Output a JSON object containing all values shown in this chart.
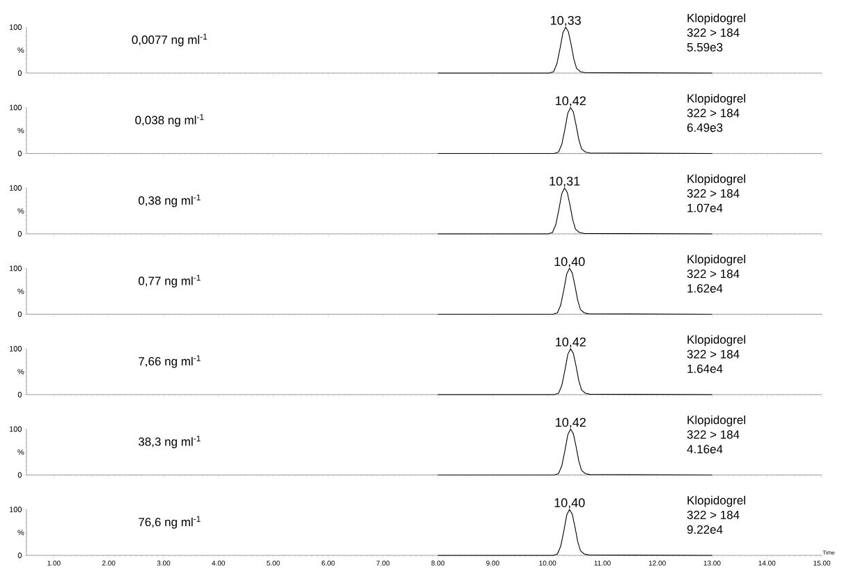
{
  "chart_data": [
    {
      "type": "line",
      "title": "0,0077 ng ml$^{-1}$",
      "ylabel": "%",
      "xlim": [
        0.5,
        15
      ],
      "ylim": [
        0,
        100
      ],
      "tick_labels": "y",
      "xticks": [
        {
          "value": 1,
          "label": null
        },
        {
          "value": 2,
          "label": null
        },
        {
          "value": 3,
          "label": null
        },
        {
          "value": 4,
          "label": null
        },
        {
          "value": 5,
          "label": null
        },
        {
          "value": 6,
          "label": null
        },
        {
          "value": 7,
          "label": null
        },
        {
          "value": 8,
          "label": null
        },
        {
          "value": 9,
          "label": null
        },
        {
          "value": 10,
          "label": null
        },
        {
          "value": 11,
          "label": null
        },
        {
          "value": 12,
          "label": null
        },
        {
          "value": 13,
          "label": null
        },
        {
          "value": 14,
          "label": null
        },
        {
          "value": 15,
          "label": null
        }
      ],
      "yticks": [
        0,
        100
      ],
      "annotations": [
        {
          "text": "10,33",
          "x": 10.33,
          "y": 100
        },
        "Klopidogrel",
        "322 > 184",
        "5.59e3"
      ],
      "series": [
        {
          "color": "#000000",
          "x": [
            8.0,
            10.03,
            10.11,
            10.17,
            10.23,
            10.28,
            10.33,
            10.38,
            10.43,
            10.48,
            10.53,
            10.6,
            10.68,
            13.0
          ],
          "values": [
            0,
            0,
            3,
            20,
            55,
            88,
            100,
            90,
            62,
            30,
            10,
            3,
            1,
            0
          ]
        }
      ]
    },
    {
      "type": "line",
      "title": "0,038 ng ml$^{-1}$",
      "ylabel": "%",
      "xlim": [
        0.5,
        15
      ],
      "ylim": [
        0,
        100
      ],
      "tick_labels": "y",
      "xticks": [
        {
          "value": 1,
          "label": null
        },
        {
          "value": 2,
          "label": null
        },
        {
          "value": 3,
          "label": null
        },
        {
          "value": 4,
          "label": null
        },
        {
          "value": 5,
          "label": null
        },
        {
          "value": 6,
          "label": null
        },
        {
          "value": 7,
          "label": null
        },
        {
          "value": 8,
          "label": null
        },
        {
          "value": 9,
          "label": null
        },
        {
          "value": 10,
          "label": null
        },
        {
          "value": 11,
          "label": null
        },
        {
          "value": 12,
          "label": null
        },
        {
          "value": 13,
          "label": null
        },
        {
          "value": 14,
          "label": null
        },
        {
          "value": 15,
          "label": null
        }
      ],
      "yticks": [
        0,
        100
      ],
      "annotations": [
        {
          "text": "10,42",
          "x": 10.42,
          "y": 100
        },
        "Klopidogrel",
        "322 > 184",
        "6.49e3"
      ],
      "series": [
        {
          "color": "#000000",
          "x": [
            8.0,
            10.12,
            10.2,
            10.26,
            10.32,
            10.37,
            10.42,
            10.47,
            10.52,
            10.57,
            10.62,
            10.69,
            10.77,
            13.0
          ],
          "values": [
            0,
            0,
            3,
            20,
            55,
            88,
            100,
            90,
            62,
            30,
            10,
            3,
            1,
            0
          ]
        }
      ]
    },
    {
      "type": "line",
      "title": "0,38 ng ml$^{-1}$",
      "ylabel": "%",
      "xlim": [
        0.5,
        15
      ],
      "ylim": [
        0,
        100
      ],
      "tick_labels": "y",
      "xticks": [
        {
          "value": 1,
          "label": null
        },
        {
          "value": 2,
          "label": null
        },
        {
          "value": 3,
          "label": null
        },
        {
          "value": 4,
          "label": null
        },
        {
          "value": 5,
          "label": null
        },
        {
          "value": 6,
          "label": null
        },
        {
          "value": 7,
          "label": null
        },
        {
          "value": 8,
          "label": null
        },
        {
          "value": 9,
          "label": null
        },
        {
          "value": 10,
          "label": null
        },
        {
          "value": 11,
          "label": null
        },
        {
          "value": 12,
          "label": null
        },
        {
          "value": 13,
          "label": null
        },
        {
          "value": 14,
          "label": null
        },
        {
          "value": 15,
          "label": null
        }
      ],
      "yticks": [
        0,
        100
      ],
      "annotations": [
        {
          "text": "10,31",
          "x": 10.31,
          "y": 100
        },
        "Klopidogrel",
        "322 > 184",
        "1.07e4"
      ],
      "series": [
        {
          "color": "#000000",
          "x": [
            8.0,
            10.01,
            10.09,
            10.15,
            10.21,
            10.26,
            10.31,
            10.36,
            10.41,
            10.46,
            10.51,
            10.58,
            10.66,
            13.0
          ],
          "values": [
            0,
            0,
            3,
            20,
            55,
            88,
            100,
            90,
            62,
            30,
            10,
            3,
            1,
            0
          ]
        }
      ]
    },
    {
      "type": "line",
      "title": "0,77 ng ml$^{-1}$",
      "ylabel": "%",
      "xlim": [
        0.5,
        15
      ],
      "ylim": [
        0,
        100
      ],
      "tick_labels": "y",
      "xticks": [
        {
          "value": 1,
          "label": null
        },
        {
          "value": 2,
          "label": null
        },
        {
          "value": 3,
          "label": null
        },
        {
          "value": 4,
          "label": null
        },
        {
          "value": 5,
          "label": null
        },
        {
          "value": 6,
          "label": null
        },
        {
          "value": 7,
          "label": null
        },
        {
          "value": 8,
          "label": null
        },
        {
          "value": 9,
          "label": null
        },
        {
          "value": 10,
          "label": null
        },
        {
          "value": 11,
          "label": null
        },
        {
          "value": 12,
          "label": null
        },
        {
          "value": 13,
          "label": null
        },
        {
          "value": 14,
          "label": null
        },
        {
          "value": 15,
          "label": null
        }
      ],
      "yticks": [
        0,
        100
      ],
      "annotations": [
        {
          "text": "10,40",
          "x": 10.4,
          "y": 100
        },
        "Klopidogrel",
        "322 > 184",
        "1.62e4"
      ],
      "series": [
        {
          "color": "#000000",
          "x": [
            8.0,
            10.1,
            10.18,
            10.24,
            10.3,
            10.35,
            10.4,
            10.45,
            10.5,
            10.55,
            10.6,
            10.67,
            10.75,
            13.0
          ],
          "values": [
            0,
            0,
            3,
            20,
            55,
            88,
            100,
            90,
            62,
            30,
            10,
            3,
            1,
            0
          ]
        }
      ]
    },
    {
      "type": "line",
      "title": "7,66 ng ml$^{-1}$",
      "ylabel": "%",
      "xlim": [
        0.5,
        15
      ],
      "ylim": [
        0,
        100
      ],
      "tick_labels": "y",
      "xticks": [
        {
          "value": 1,
          "label": null
        },
        {
          "value": 2,
          "label": null
        },
        {
          "value": 3,
          "label": null
        },
        {
          "value": 4,
          "label": null
        },
        {
          "value": 5,
          "label": null
        },
        {
          "value": 6,
          "label": null
        },
        {
          "value": 7,
          "label": null
        },
        {
          "value": 8,
          "label": null
        },
        {
          "value": 9,
          "label": null
        },
        {
          "value": 10,
          "label": null
        },
        {
          "value": 11,
          "label": null
        },
        {
          "value": 12,
          "label": null
        },
        {
          "value": 13,
          "label": null
        },
        {
          "value": 14,
          "label": null
        },
        {
          "value": 15,
          "label": null
        }
      ],
      "yticks": [
        0,
        100
      ],
      "annotations": [
        {
          "text": "10,42",
          "x": 10.42,
          "y": 100
        },
        "Klopidogrel",
        "322 > 184",
        "1.64e4"
      ],
      "series": [
        {
          "color": "#000000",
          "x": [
            8.0,
            10.12,
            10.2,
            10.26,
            10.32,
            10.37,
            10.42,
            10.47,
            10.52,
            10.57,
            10.62,
            10.69,
            10.77,
            13.0
          ],
          "values": [
            0,
            0,
            3,
            20,
            55,
            88,
            100,
            90,
            62,
            30,
            10,
            3,
            1,
            0
          ]
        }
      ]
    },
    {
      "type": "line",
      "title": "38,3 ng ml$^{-1}$",
      "ylabel": "%",
      "xlim": [
        0.5,
        15
      ],
      "ylim": [
        0,
        100
      ],
      "tick_labels": "y",
      "xticks": [
        {
          "value": 1,
          "label": null
        },
        {
          "value": 2,
          "label": null
        },
        {
          "value": 3,
          "label": null
        },
        {
          "value": 4,
          "label": null
        },
        {
          "value": 5,
          "label": null
        },
        {
          "value": 6,
          "label": null
        },
        {
          "value": 7,
          "label": null
        },
        {
          "value": 8,
          "label": null
        },
        {
          "value": 9,
          "label": null
        },
        {
          "value": 10,
          "label": null
        },
        {
          "value": 11,
          "label": null
        },
        {
          "value": 12,
          "label": null
        },
        {
          "value": 13,
          "label": null
        },
        {
          "value": 14,
          "label": null
        },
        {
          "value": 15,
          "label": null
        }
      ],
      "yticks": [
        0,
        100
      ],
      "annotations": [
        {
          "text": "10,42",
          "x": 10.42,
          "y": 100
        },
        "Klopidogrel",
        "322 > 184",
        "4.16e4"
      ],
      "series": [
        {
          "color": "#000000",
          "x": [
            8.0,
            10.12,
            10.2,
            10.26,
            10.32,
            10.37,
            10.42,
            10.47,
            10.52,
            10.57,
            10.62,
            10.69,
            10.77,
            13.0
          ],
          "values": [
            0,
            0,
            3,
            20,
            55,
            88,
            100,
            90,
            62,
            30,
            10,
            3,
            1,
            0
          ]
        }
      ]
    },
    {
      "type": "line",
      "title": "76,6 ng ml$^{-1}$",
      "xlabel": "Time",
      "ylabel": "%",
      "xlim": [
        0.5,
        15
      ],
      "ylim": [
        0,
        100
      ],
      "xticks": [
        {
          "value": 1,
          "label": "1.00"
        },
        {
          "value": 2,
          "label": "2.00"
        },
        {
          "value": 3,
          "label": "3.00"
        },
        {
          "value": 4,
          "label": "4.00"
        },
        {
          "value": 5,
          "label": "5.00"
        },
        {
          "value": 6,
          "label": "6.00"
        },
        {
          "value": 7,
          "label": "7.00"
        },
        {
          "value": 8,
          "label": "8.00"
        },
        {
          "value": 9,
          "label": "9.00"
        },
        {
          "value": 10,
          "label": "10.00"
        },
        {
          "value": 11,
          "label": "11.00"
        },
        {
          "value": 12,
          "label": "12.00"
        },
        {
          "value": 13,
          "label": "13.00"
        },
        {
          "value": 14,
          "label": "14.00"
        },
        {
          "value": 15,
          "label": "15.00"
        }
      ],
      "yticks": [
        0,
        100
      ],
      "annotations": [
        {
          "text": "10,40",
          "x": 10.4,
          "y": 100
        },
        "Klopidogrel",
        "322 > 184",
        "9.22e4"
      ],
      "series": [
        {
          "color": "#000000",
          "x": [
            8.0,
            10.1,
            10.18,
            10.24,
            10.3,
            10.35,
            10.4,
            10.45,
            10.5,
            10.55,
            10.6,
            10.67,
            10.75,
            13.0
          ],
          "values": [
            0,
            0,
            3,
            20,
            55,
            88,
            100,
            90,
            62,
            30,
            10,
            3,
            1,
            0
          ]
        }
      ]
    }
  ]
}
